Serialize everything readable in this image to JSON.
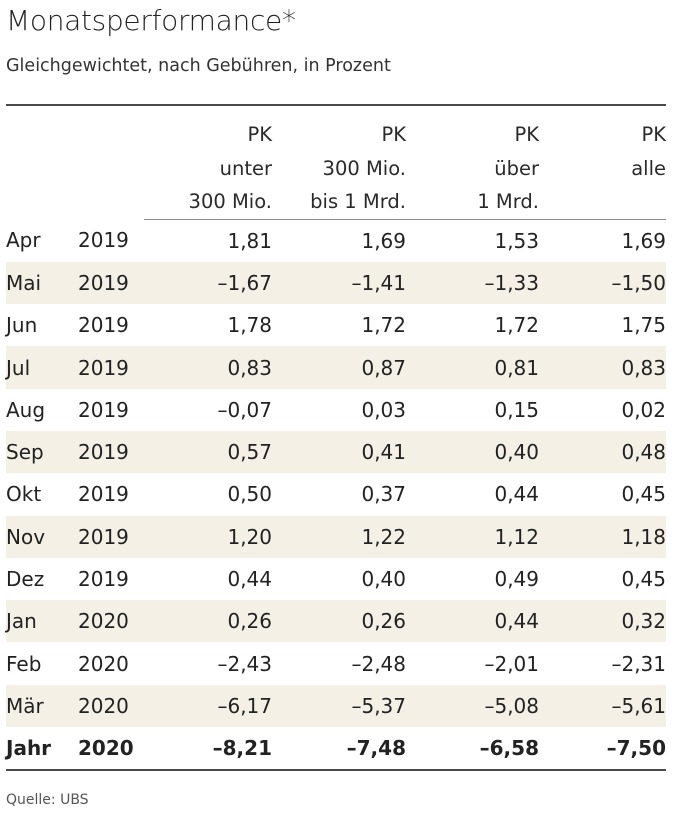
{
  "chart_data": {
    "type": "table",
    "title": "Monatsperformance*",
    "subtitle": "Gleichgewichtet, nach Gebühren, in Prozent",
    "columns": [
      {
        "lines": [
          "PK",
          "unter",
          "300 Mio."
        ]
      },
      {
        "lines": [
          "PK",
          "300 Mio.",
          "bis 1 Mrd."
        ]
      },
      {
        "lines": [
          "PK",
          "über",
          "1 Mrd."
        ]
      },
      {
        "lines": [
          "PK",
          "alle",
          ""
        ]
      }
    ],
    "rows": [
      {
        "month": "Apr",
        "year": "2019",
        "values": [
          "1,81",
          "1,69",
          "1,53",
          "1,69"
        ]
      },
      {
        "month": "Mai",
        "year": "2019",
        "values": [
          "–1,67",
          "–1,41",
          "–1,33",
          "–1,50"
        ]
      },
      {
        "month": "Jun",
        "year": "2019",
        "values": [
          "1,78",
          "1,72",
          "1,72",
          "1,75"
        ]
      },
      {
        "month": "Jul",
        "year": "2019",
        "values": [
          "0,83",
          "0,87",
          "0,81",
          "0,83"
        ]
      },
      {
        "month": "Aug",
        "year": "2019",
        "values": [
          "–0,07",
          "0,03",
          "0,15",
          "0,02"
        ]
      },
      {
        "month": "Sep",
        "year": "2019",
        "values": [
          "0,57",
          "0,41",
          "0,40",
          "0,48"
        ]
      },
      {
        "month": "Okt",
        "year": "2019",
        "values": [
          "0,50",
          "0,37",
          "0,44",
          "0,45"
        ]
      },
      {
        "month": "Nov",
        "year": "2019",
        "values": [
          "1,20",
          "1,22",
          "1,12",
          "1,18"
        ]
      },
      {
        "month": "Dez",
        "year": "2019",
        "values": [
          "0,44",
          "0,40",
          "0,49",
          "0,45"
        ]
      },
      {
        "month": "Jan",
        "year": "2020",
        "values": [
          "0,26",
          "0,26",
          "0,44",
          "0,32"
        ]
      },
      {
        "month": "Feb",
        "year": "2020",
        "values": [
          "–2,43",
          "–2,48",
          "–2,01",
          "–2,31"
        ]
      },
      {
        "month": "Mär",
        "year": "2020",
        "values": [
          "–6,17",
          "–5,37",
          "–5,08",
          "–5,61"
        ]
      }
    ],
    "total": {
      "month": "Jahr",
      "year": "2020",
      "values": [
        "–8,21",
        "–7,48",
        "–6,58",
        "–7,50"
      ]
    },
    "source": "Quelle: UBS"
  }
}
